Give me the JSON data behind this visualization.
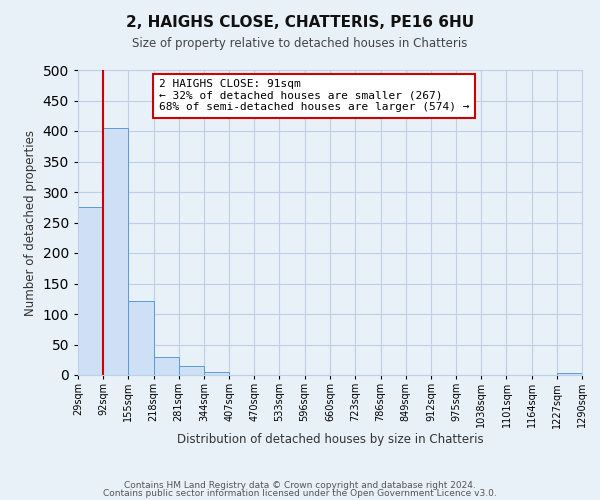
{
  "title": "2, HAIGHS CLOSE, CHATTERIS, PE16 6HU",
  "subtitle": "Size of property relative to detached houses in Chatteris",
  "xlabel": "Distribution of detached houses by size in Chatteris",
  "ylabel": "Number of detached properties",
  "bar_edges": [
    29,
    92,
    155,
    218,
    281,
    344,
    407,
    470,
    533,
    596,
    660,
    723,
    786,
    849,
    912,
    975,
    1038,
    1101,
    1164,
    1227,
    1290
  ],
  "bar_heights": [
    275,
    405,
    122,
    29,
    14,
    5,
    0,
    0,
    0,
    0,
    0,
    0,
    0,
    0,
    0,
    0,
    0,
    0,
    0,
    3
  ],
  "tick_labels": [
    "29sqm",
    "92sqm",
    "155sqm",
    "218sqm",
    "281sqm",
    "344sqm",
    "407sqm",
    "470sqm",
    "533sqm",
    "596sqm",
    "660sqm",
    "723sqm",
    "786sqm",
    "849sqm",
    "912sqm",
    "975sqm",
    "1038sqm",
    "1101sqm",
    "1164sqm",
    "1227sqm",
    "1290sqm"
  ],
  "bar_color": "#cde0f5",
  "bar_edge_color": "#5b9bd5",
  "ylim": [
    0,
    500
  ],
  "yticks": [
    0,
    50,
    100,
    150,
    200,
    250,
    300,
    350,
    400,
    450,
    500
  ],
  "property_line_x": 92,
  "annotation_title": "2 HAIGHS CLOSE: 91sqm",
  "annotation_line1": "← 32% of detached houses are smaller (267)",
  "annotation_line2": "68% of semi-detached houses are larger (574) →",
  "annotation_box_color": "#ffffff",
  "annotation_box_edge": "#cc0000",
  "property_line_color": "#cc0000",
  "grid_color": "#c0d0e8",
  "background_color": "#e8f0f8",
  "footer1": "Contains HM Land Registry data © Crown copyright and database right 2024.",
  "footer2": "Contains public sector information licensed under the Open Government Licence v3.0."
}
